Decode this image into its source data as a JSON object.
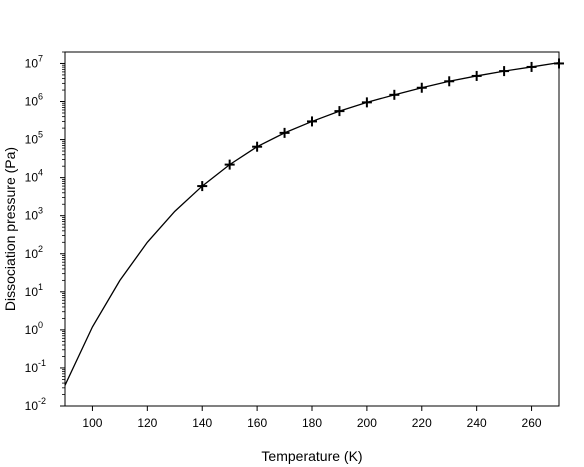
{
  "chart_data": {
    "type": "line",
    "xlabel": "Temperature (K)",
    "ylabel": "Dissociation pressure (Pa)",
    "xlim": [
      90,
      270
    ],
    "ylim": [
      0.01,
      20000000
    ],
    "yscale": "log",
    "grid": false,
    "x_ticks": [
      {
        "value": 100,
        "label": "100"
      },
      {
        "value": 120,
        "label": "120"
      },
      {
        "value": 140,
        "label": "140"
      },
      {
        "value": 160,
        "label": "160"
      },
      {
        "value": 180,
        "label": "180"
      },
      {
        "value": 200,
        "label": "200"
      },
      {
        "value": 220,
        "label": "220"
      },
      {
        "value": 240,
        "label": "240"
      },
      {
        "value": 260,
        "label": "260"
      }
    ],
    "y_ticks": [
      {
        "value": 0.01,
        "base": "10",
        "exp": "-2"
      },
      {
        "value": 0.1,
        "base": "10",
        "exp": "-1"
      },
      {
        "value": 1,
        "base": "10",
        "exp": "0"
      },
      {
        "value": 10,
        "base": "10",
        "exp": "1"
      },
      {
        "value": 100,
        "base": "10",
        "exp": "2"
      },
      {
        "value": 1000,
        "base": "10",
        "exp": "3"
      },
      {
        "value": 10000,
        "base": "10",
        "exp": "4"
      },
      {
        "value": 100000,
        "base": "10",
        "exp": "5"
      },
      {
        "value": 1000000,
        "base": "10",
        "exp": "6"
      },
      {
        "value": 10000000,
        "base": "10",
        "exp": "7"
      }
    ],
    "series": [
      {
        "style": "line",
        "x": [
          90,
          100,
          110,
          120,
          130,
          140,
          150,
          160,
          170,
          180,
          190,
          200,
          210,
          220,
          230,
          240,
          250,
          260,
          270
        ],
        "y": [
          0.035,
          1.2,
          20,
          200,
          1300,
          6000,
          22000,
          65000,
          150000,
          300000,
          560000,
          950000,
          1500000,
          2300000,
          3400000,
          4700000,
          6300000,
          8100000,
          10500000
        ]
      },
      {
        "style": "markers",
        "marker": "plus",
        "x": [
          140,
          150,
          160,
          170,
          180,
          190,
          200,
          210,
          220,
          230,
          240,
          250,
          260,
          270
        ],
        "y": [
          6000,
          22000,
          65000,
          150000,
          300000,
          560000,
          950000,
          1500000,
          2300000,
          3400000,
          4700000,
          6300000,
          8100000,
          10000000
        ]
      }
    ]
  }
}
